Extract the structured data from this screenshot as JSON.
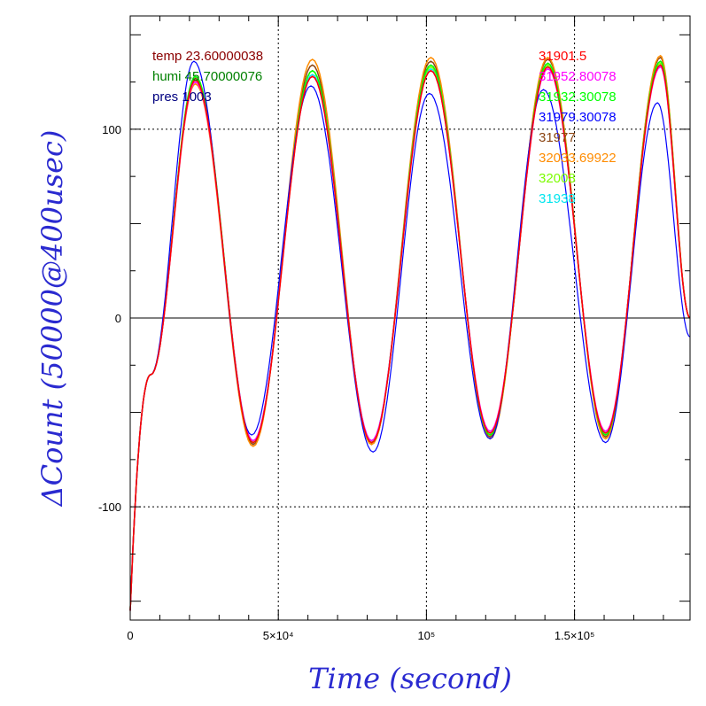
{
  "chart_data": {
    "type": "line",
    "xlabel": "Time (second)",
    "ylabel": "ΔCount (50000@400usec)",
    "xlim": [
      0,
      189000
    ],
    "ylim": [
      -160,
      160
    ],
    "x_ticks": [
      {
        "value": 0,
        "label": "0"
      },
      {
        "value": 50000,
        "label": "5×10⁴"
      },
      {
        "value": 100000,
        "label": "10⁵"
      },
      {
        "value": 150000,
        "label": "1.5×10⁵"
      }
    ],
    "y_ticks": [
      {
        "value": -100,
        "label": "-100"
      },
      {
        "value": 0,
        "label": "0"
      },
      {
        "value": 100,
        "label": "100"
      }
    ],
    "grid": "dotted at labelled ticks",
    "env_legend": [
      {
        "text": "temp 23.60000038",
        "color": "#8b0000"
      },
      {
        "text": "humi 45.70000076",
        "color": "#008000"
      },
      {
        "text": "pres 1003",
        "color": "#000080"
      }
    ],
    "series": [
      {
        "name": "31901.5",
        "color": "#ff0000",
        "x": [
          0,
          7000,
          22000,
          41500,
          61500,
          81500,
          101500,
          121500,
          141000,
          160500,
          179000,
          189000
        ],
        "y": [
          -155,
          -30,
          126,
          -66,
          128,
          -66,
          131,
          -61,
          133,
          -61,
          134,
          0
        ]
      },
      {
        "name": "31952.80078",
        "color": "#ff00ff",
        "x": [
          0,
          7000,
          22000,
          41500,
          61500,
          81500,
          101500,
          121500,
          141000,
          160500,
          179000,
          189000
        ],
        "y": [
          -155,
          -30,
          125,
          -65,
          128,
          -65,
          131,
          -60,
          132,
          -60,
          133,
          0
        ]
      },
      {
        "name": "31932.30078",
        "color": "#00ff00",
        "x": [
          0,
          7000,
          22000,
          41500,
          61500,
          81500,
          101500,
          121500,
          141000,
          160500,
          179000,
          189000
        ],
        "y": [
          -155,
          -30,
          128,
          -66,
          131,
          -66,
          134,
          -62,
          135,
          -62,
          136,
          0
        ]
      },
      {
        "name": "31979.30078",
        "color": "#0000ff",
        "x": [
          0,
          7000,
          21500,
          41000,
          61000,
          82000,
          101000,
          121500,
          139500,
          160500,
          178000,
          189000
        ],
        "y": [
          -155,
          -30,
          136,
          -62,
          123,
          -71,
          119,
          -64,
          121,
          -66,
          114,
          -10
        ]
      },
      {
        "name": "31977",
        "color": "#8b4513",
        "x": [
          0,
          7000,
          22000,
          41500,
          61500,
          81500,
          101500,
          121500,
          141000,
          160500,
          179000,
          189000
        ],
        "y": [
          -155,
          -30,
          127,
          -67,
          134,
          -67,
          136,
          -63,
          137,
          -63,
          138,
          0
        ]
      },
      {
        "name": "32033.69922",
        "color": "#ff8c00",
        "x": [
          0,
          7000,
          22000,
          41500,
          61500,
          81500,
          101500,
          121500,
          141000,
          160500,
          179000,
          189000
        ],
        "y": [
          -155,
          -30,
          124,
          -68,
          137,
          -67,
          138,
          -64,
          138,
          -64,
          139,
          0
        ]
      },
      {
        "name": "32008",
        "color": "#7cfc00",
        "x": [
          0,
          7000,
          22000,
          41500,
          61500,
          81500,
          101500,
          121500,
          141000,
          160500,
          179000,
          189000
        ],
        "y": [
          -155,
          -30,
          127,
          -66,
          131,
          -66,
          133,
          -62,
          134,
          -62,
          135,
          0
        ]
      },
      {
        "name": "31938",
        "color": "#00e5ee",
        "x": [
          0,
          7000,
          22000,
          41500,
          61500,
          81500,
          101500,
          121500,
          141000,
          160500,
          179000,
          189000
        ],
        "y": [
          -155,
          -30,
          126,
          -65,
          129,
          -65,
          132,
          -61,
          133,
          -61,
          134,
          0
        ]
      }
    ]
  }
}
